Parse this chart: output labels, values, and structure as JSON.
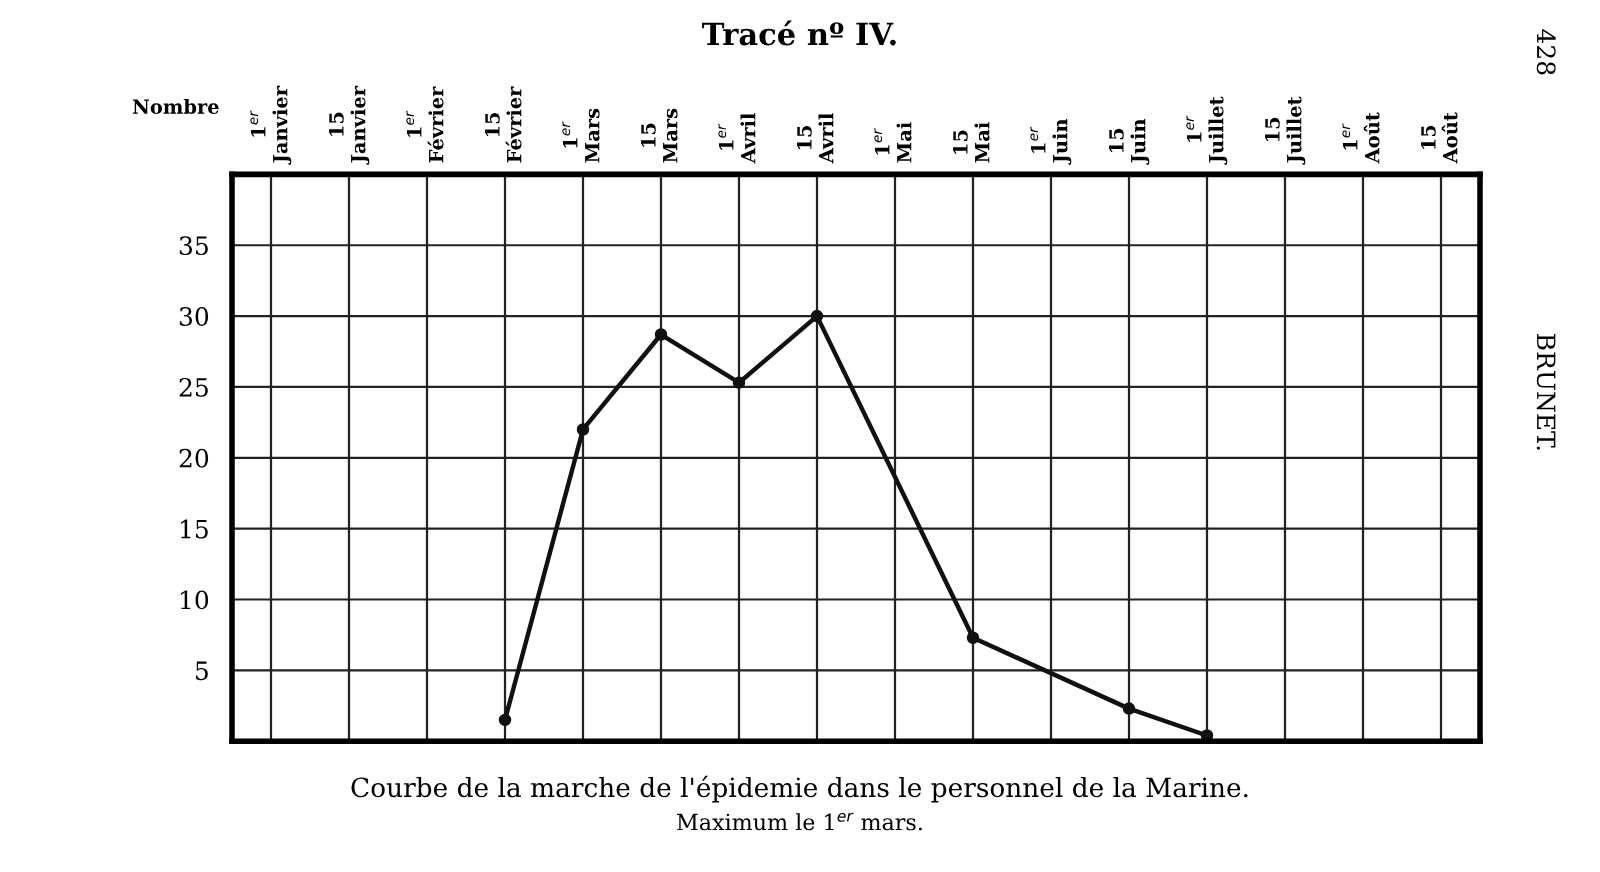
{
  "chart_data": {
    "type": "line",
    "title": "Tracé nº IV.",
    "ylabel": "Nombre",
    "categories": [
      "1$^{er}$ Janvier",
      "15 Janvier",
      "1$^{er}$ Février",
      "15 Février",
      "1$^{er}$ Mars",
      "15 Mars",
      "1$^{er}$ Avril",
      "15 Avril",
      "1$^{er}$ Mai",
      "15 Mai",
      "1$^{er}$ Juin",
      "15 Juin",
      "1$^{er}$ Juillet",
      "15 Juillet",
      "1$^{er}$ Août",
      "15 Août"
    ],
    "series": [
      {
        "color": "#111111",
        "values": [
          null,
          null,
          null,
          1.5,
          22,
          28.7,
          25.3,
          30,
          null,
          7.3,
          null,
          2.3,
          0.4,
          null,
          null,
          null
        ]
      }
    ],
    "ylim": [
      0,
      40
    ],
    "yticks": [
      5,
      10,
      15,
      20,
      25,
      30,
      35
    ],
    "grid": true,
    "marker": "circle",
    "line_style": "solid",
    "legend": false,
    "annotations": [
      "Courbe de la marche de l'épidemie dans le personnel de la Marine.",
      "Maximum le 1$^{er}$ mars.",
      "428",
      "BRUNET."
    ]
  }
}
